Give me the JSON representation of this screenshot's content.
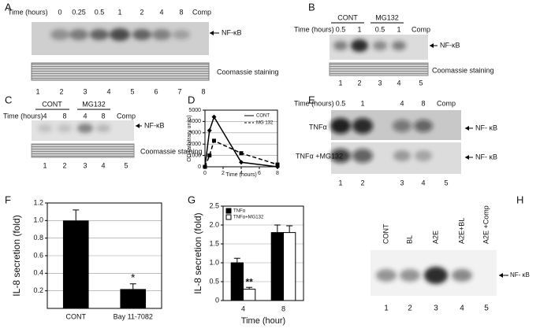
{
  "panels": {
    "A": {
      "letter": "A",
      "time_label": "Time (hours)",
      "lanes": [
        "0",
        "0.25",
        "0.5",
        "1",
        "2",
        "4",
        "8",
        "Comp"
      ],
      "band_label": "NF-κB",
      "stain_label": "Coomassie staining",
      "lane_numbers": [
        "1",
        "2",
        "3",
        "4",
        "5",
        "6",
        "7",
        "8"
      ]
    },
    "B": {
      "letter": "B",
      "groups": [
        "CONT",
        "MG132"
      ],
      "time_label": "Time (hours)",
      "lanes": [
        "0.5",
        "1",
        "0.5",
        "1",
        "Comp"
      ],
      "band_label": "NF-κB",
      "stain_label": "Coomassie staining",
      "lane_numbers": [
        "1",
        "2",
        "3",
        "4",
        "5"
      ]
    },
    "C": {
      "letter": "C",
      "groups": [
        "CONT",
        "MG132"
      ],
      "time_label": "Time (hours)",
      "lanes": [
        "4",
        "8",
        "4",
        "8",
        "Comp"
      ],
      "band_label": "NF-κB",
      "stain_label": "Coomassie staining",
      "lane_numbers": [
        "1",
        "2",
        "3",
        "4",
        "5"
      ]
    },
    "D": {
      "letter": "D"
    },
    "E": {
      "letter": "E",
      "time_label": "Time (hours)",
      "lanes": [
        "0.5",
        "1",
        "4",
        "8",
        "Comp"
      ],
      "row_labels": [
        "TNFα",
        "TNFα +MG132"
      ],
      "band_labels": [
        "NF- κB",
        "NF- κB"
      ],
      "lane_numbers": [
        "1",
        "2",
        "3",
        "4",
        "5"
      ]
    },
    "F": {
      "letter": "F"
    },
    "G": {
      "letter": "G"
    },
    "H": {
      "letter": "H",
      "lanes": [
        "CONT",
        "BL",
        "A2E",
        "A2E+BL",
        "A2E +Comp"
      ],
      "band_label": "NF- κB",
      "lane_numbers": [
        "1",
        "2",
        "3",
        "4",
        "5"
      ]
    }
  },
  "chart_data": [
    {
      "type": "line",
      "xlabel": "Time (hours)",
      "ylabel": "OD (arbitrary units)",
      "xlim": [
        0,
        8
      ],
      "ylim": [
        0,
        5000
      ],
      "xticks": [
        0,
        2,
        4,
        6,
        8
      ],
      "yticks": [
        0,
        1000,
        2000,
        3000,
        4000,
        5000
      ],
      "grid": true,
      "legend": "upper right",
      "series": [
        {
          "name": "CONT",
          "color": "#000000",
          "style": "solid",
          "marker": "diamond",
          "x": [
            0,
            0.5,
            1,
            4,
            8
          ],
          "values": [
            0,
            3200,
            4400,
            400,
            0
          ]
        },
        {
          "name": "MG 132",
          "color": "#000000",
          "style": "dashed",
          "marker": "square",
          "x": [
            0,
            0.5,
            1,
            4,
            8
          ],
          "values": [
            0,
            1000,
            2300,
            1200,
            200
          ]
        }
      ]
    },
    {
      "type": "bar",
      "ylabel": "IL-8 secretion (fold)",
      "categories": [
        "CONT",
        "Bay 11-7082"
      ],
      "values": [
        1.0,
        0.22
      ],
      "errors": [
        0.12,
        0.06
      ],
      "color": "#000000",
      "ylim": [
        0,
        1.2
      ],
      "yticks": [
        0.2,
        0.4,
        0.6,
        0.8,
        {
          "value": 1.0,
          "label": "1.0"
        },
        1.2
      ],
      "grid": true,
      "annotations": [
        {
          "text": "*",
          "category": 1
        }
      ]
    },
    {
      "type": "grouped_bar",
      "xlabel": "Time (hour)",
      "ylabel": "IL-8 secretion (fold)",
      "categories": [
        "4",
        "8"
      ],
      "ylim": [
        0,
        2.5
      ],
      "yticks": [
        0,
        0.5,
        {
          "value": 1.0,
          "label": "1.0"
        },
        1.5,
        {
          "value": 2.0,
          "label": "2.0"
        },
        2.5
      ],
      "grid": true,
      "legend": "upper left",
      "series": [
        {
          "name": "TNFα",
          "color": "#000000",
          "values": [
            1.0,
            1.8
          ],
          "errors": [
            0.12,
            0.2
          ]
        },
        {
          "name": "TNFα+MG132",
          "color": "#ffffff",
          "values": [
            0.3,
            1.8
          ],
          "errors": [
            0.05,
            0.18
          ]
        }
      ],
      "annotations": [
        {
          "text": "**",
          "category": 0
        }
      ]
    }
  ]
}
